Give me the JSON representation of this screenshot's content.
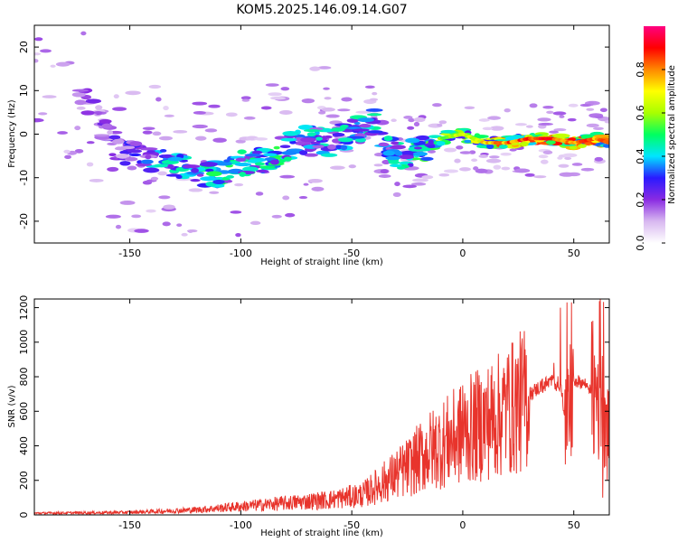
{
  "title": "KOM5.2025.146.09.14.G07",
  "chart_data": [
    {
      "type": "heatmap",
      "xlabel": "Height of straight line (km)",
      "ylabel": "Frequency (Hz)",
      "xlim": [
        -193,
        66
      ],
      "ylim": [
        -25,
        25
      ],
      "xticks": [
        -150,
        -100,
        -50,
        0,
        50
      ],
      "yticks": [
        -20,
        -10,
        0,
        10,
        20
      ],
      "colorbar": {
        "label": "Normalized spectral amplitude",
        "range": [
          0,
          1
        ],
        "ticks": [
          "0.0",
          "0.2",
          "0.4",
          "0.6",
          "0.8"
        ],
        "colors": [
          "#ffffff",
          "#d8b8f0",
          "#8a2be2",
          "#2a1aff",
          "#00e5ff",
          "#00ff60",
          "#a8ff00",
          "#ffff00",
          "#ff8800",
          "#ff0000",
          "#ff0080"
        ]
      },
      "ridge": [
        {
          "x": -193,
          "f": 18,
          "a": 0.15
        },
        {
          "x": -170,
          "f": 8,
          "a": 0.2
        },
        {
          "x": -155,
          "f": -4,
          "a": 0.25
        },
        {
          "x": -140,
          "f": -6,
          "a": 0.4
        },
        {
          "x": -130,
          "f": -7,
          "a": 0.45
        },
        {
          "x": -120,
          "f": -10,
          "a": 0.5
        },
        {
          "x": -110,
          "f": -9,
          "a": 0.5
        },
        {
          "x": -100,
          "f": -7,
          "a": 0.5
        },
        {
          "x": -90,
          "f": -6,
          "a": 0.5
        },
        {
          "x": -80,
          "f": -3,
          "a": 0.5
        },
        {
          "x": -70,
          "f": -1,
          "a": 0.45
        },
        {
          "x": -60,
          "f": -2,
          "a": 0.45
        },
        {
          "x": -50,
          "f": 0,
          "a": 0.5
        },
        {
          "x": -40,
          "f": 3,
          "a": 0.45
        },
        {
          "x": -30,
          "f": -5,
          "a": 0.45
        },
        {
          "x": -20,
          "f": -4,
          "a": 0.55
        },
        {
          "x": -10,
          "f": -1,
          "a": 0.6
        },
        {
          "x": 0,
          "f": 0,
          "a": 0.65
        },
        {
          "x": 10,
          "f": -2,
          "a": 0.75
        },
        {
          "x": 20,
          "f": -2,
          "a": 0.85
        },
        {
          "x": 30,
          "f": -1,
          "a": 0.9
        },
        {
          "x": 40,
          "f": -1,
          "a": 0.9
        },
        {
          "x": 50,
          "f": -2,
          "a": 0.85
        },
        {
          "x": 60,
          "f": -1,
          "a": 0.85
        },
        {
          "x": 66,
          "f": -2,
          "a": 0.85
        }
      ]
    },
    {
      "type": "line",
      "xlabel": "Height of straight line (km)",
      "ylabel": "SNR (v/v)",
      "xlim": [
        -193,
        66
      ],
      "ylim": [
        0,
        1250
      ],
      "xticks": [
        -150,
        -100,
        -50,
        0,
        50
      ],
      "yticks": [
        0,
        200,
        400,
        600,
        800,
        1000,
        1200
      ],
      "color": "#e8342c",
      "trend": [
        {
          "x": -193,
          "y": 10
        },
        {
          "x": -150,
          "y": 15
        },
        {
          "x": -120,
          "y": 30
        },
        {
          "x": -100,
          "y": 50
        },
        {
          "x": -80,
          "y": 70
        },
        {
          "x": -60,
          "y": 90
        },
        {
          "x": -45,
          "y": 120
        },
        {
          "x": -35,
          "y": 200
        },
        {
          "x": -25,
          "y": 280
        },
        {
          "x": -15,
          "y": 380
        },
        {
          "x": -5,
          "y": 450
        },
        {
          "x": 5,
          "y": 520
        },
        {
          "x": 15,
          "y": 580
        },
        {
          "x": 25,
          "y": 660
        },
        {
          "x": 35,
          "y": 750
        },
        {
          "x": 40,
          "y": 780
        },
        {
          "x": 44,
          "y": 760
        },
        {
          "x": 47,
          "y": 500
        },
        {
          "x": 50,
          "y": 780
        },
        {
          "x": 55,
          "y": 760
        },
        {
          "x": 60,
          "y": 700
        },
        {
          "x": 63,
          "y": 900
        },
        {
          "x": 66,
          "y": 400
        }
      ],
      "spikes": [
        {
          "x": 47,
          "y": 1230
        },
        {
          "x": 49,
          "y": 1230
        },
        {
          "x": 62,
          "y": 1250
        },
        {
          "x": 63,
          "y": 100
        },
        {
          "x": 44,
          "y": 1200
        },
        {
          "x": 41,
          "y": 880
        },
        {
          "x": 20,
          "y": 760
        },
        {
          "x": 0,
          "y": 750
        }
      ]
    }
  ]
}
